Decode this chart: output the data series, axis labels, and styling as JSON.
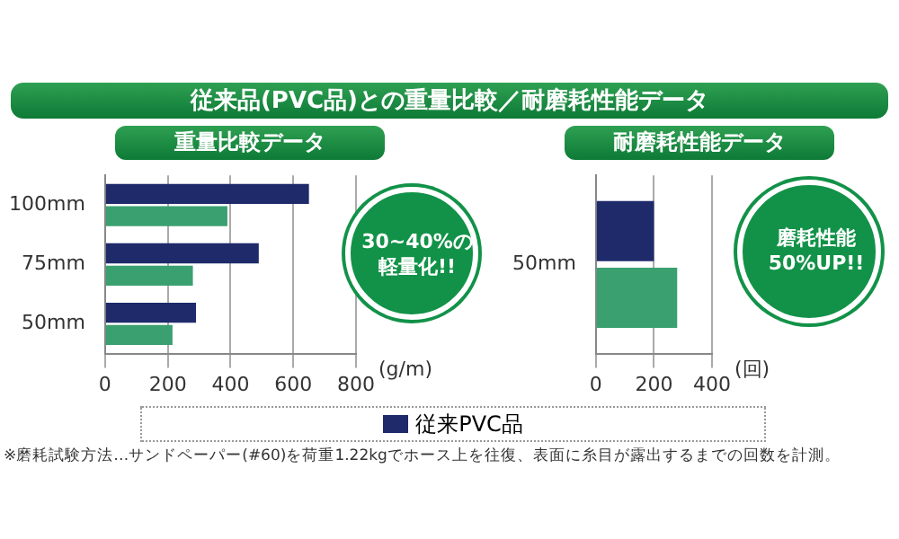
{
  "chart_data": [
    {
      "type": "bar",
      "orientation": "horizontal",
      "title": "従来品(PVC品)との重量比較／耐磨耗性能データ",
      "subtitle": "重量比較データ",
      "xlabel": "(g/m)",
      "categories": [
        "100mm",
        "75mm",
        "50mm"
      ],
      "series": [
        {
          "name": "従来PVC品",
          "color": "#1f2a6b",
          "values": [
            650,
            490,
            290
          ]
        },
        {
          "color": "#3aa070",
          "values": [
            390,
            280,
            215
          ]
        }
      ],
      "xlim": [
        0,
        800
      ],
      "xticks": [
        0,
        200,
        400,
        600,
        800
      ],
      "grid": "x",
      "legend": "bottom",
      "annotations": [
        "30~40%の軽量化!!"
      ]
    },
    {
      "type": "bar",
      "orientation": "horizontal",
      "title": "耐磨耗性能データ",
      "xlabel": "(回)",
      "categories": [
        "50mm"
      ],
      "series": [
        {
          "color": "#1f2a6b",
          "values": [
            200
          ]
        },
        {
          "color": "#3aa070",
          "values": [
            280
          ]
        }
      ],
      "xlim": [
        0,
        400
      ],
      "xticks": [
        0,
        200,
        400
      ],
      "grid": "x",
      "annotations": [
        "磨耗性能50%UP!!",
        "※磨耗試験方法…サンドペーパー(#60)を荷重1.22kgでホース上を往復、表面に糸目が露出するまでの回数を計測。"
      ]
    }
  ]
}
